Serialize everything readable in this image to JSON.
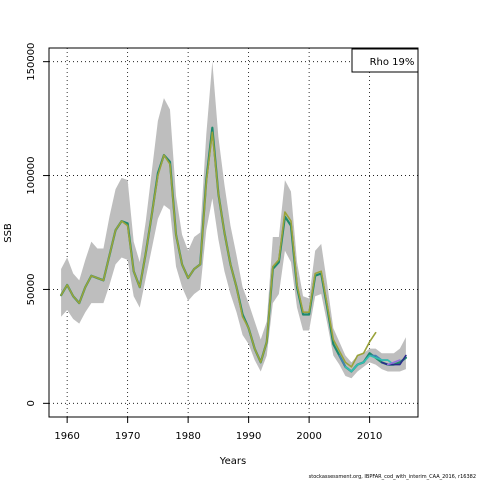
{
  "chart_data": {
    "type": "line",
    "xlabel": "Years",
    "ylabel": "SSB",
    "xlim": [
      1957,
      2018
    ],
    "ylim": [
      -6000,
      156000
    ],
    "x_ticks": [
      1960,
      1970,
      1980,
      1990,
      2000,
      2010
    ],
    "y_ticks": [
      0,
      50000,
      100000,
      150000
    ],
    "grid": "dotted",
    "legend_text": "Rho 19%",
    "legend_position": "top-right",
    "footer": "stockassessment.org, IBPFAR_cod_with_interim_CAA_2016, r16382",
    "confidence_band": {
      "color": "#bebebe",
      "x": [
        1959,
        1960,
        1961,
        1962,
        1963,
        1964,
        1965,
        1966,
        1967,
        1968,
        1969,
        1970,
        1971,
        1972,
        1973,
        1974,
        1975,
        1976,
        1977,
        1978,
        1979,
        1980,
        1981,
        1982,
        1983,
        1984,
        1985,
        1986,
        1987,
        1988,
        1989,
        1990,
        1991,
        1992,
        1993,
        1994,
        1995,
        1996,
        1997,
        1998,
        1999,
        2000,
        2001,
        2002,
        2003,
        2004,
        2005,
        2006,
        2007,
        2008,
        2009,
        2010,
        2011,
        2012,
        2013,
        2014,
        2015,
        2016
      ],
      "lower": [
        38000,
        41000,
        37000,
        35000,
        40000,
        44000,
        44000,
        44000,
        52000,
        61000,
        64000,
        63000,
        47000,
        42000,
        55000,
        68000,
        81000,
        87000,
        85000,
        60000,
        51000,
        45000,
        48000,
        50000,
        76000,
        90000,
        72000,
        58000,
        48000,
        40000,
        30000,
        26000,
        19000,
        14000,
        21000,
        44000,
        48000,
        67000,
        62000,
        42000,
        32000,
        32000,
        47000,
        48000,
        35000,
        21000,
        17000,
        12000,
        11000,
        14000,
        16000,
        18000,
        17000,
        15000,
        14000,
        14000,
        14000,
        15000
      ],
      "upper": [
        59000,
        64000,
        57000,
        54000,
        63000,
        71000,
        68000,
        68000,
        82000,
        94000,
        99000,
        98000,
        71000,
        62000,
        80000,
        102000,
        124000,
        134000,
        129000,
        91000,
        74000,
        67000,
        73000,
        75000,
        118000,
        150000,
        117000,
        96000,
        78000,
        65000,
        51000,
        44000,
        36000,
        28000,
        36000,
        73000,
        73000,
        98000,
        93000,
        62000,
        47000,
        46000,
        67000,
        70000,
        52000,
        33000,
        27000,
        21000,
        18000,
        21000,
        22000,
        24000,
        24000,
        22000,
        22000,
        22000,
        24000,
        29000
      ]
    },
    "series": [
      {
        "color": "#1e8a6e",
        "x": [
          1959,
          1960,
          1961,
          1962,
          1963,
          1964,
          1965,
          1966,
          1967,
          1968,
          1969,
          1970,
          1971,
          1972,
          1973,
          1974,
          1975,
          1976,
          1977,
          1978,
          1979,
          1980,
          1981,
          1982,
          1983,
          1984,
          1985,
          1986,
          1987,
          1988,
          1989,
          1990,
          1991,
          1992,
          1993,
          1994,
          1995,
          1996,
          1997,
          1998,
          1999,
          2000,
          2001,
          2002,
          2003,
          2004,
          2005,
          2006,
          2007,
          2008,
          2009,
          2010,
          2011,
          2012,
          2013,
          2014,
          2015,
          2016
        ],
        "values": [
          47500,
          52000,
          47000,
          44000,
          51000,
          56000,
          55000,
          54000,
          65000,
          76000,
          80000,
          79000,
          58000,
          51000,
          66000,
          83000,
          101000,
          109000,
          106000,
          74000,
          61000,
          55000,
          59000,
          61000,
          98000,
          121000,
          92000,
          75000,
          61000,
          51000,
          39000,
          33000,
          24000,
          18000,
          27000,
          59000,
          62000,
          82000,
          78000,
          51000,
          39000,
          39000,
          56000,
          57000,
          42000,
          26000,
          21000,
          16000,
          14000,
          17000,
          18000,
          22000,
          20000,
          18000,
          17000,
          17000,
          18000,
          20000
        ]
      },
      {
        "color": "#4682b4",
        "x": [
          2005,
          2006,
          2007,
          2008,
          2009,
          2010,
          2011,
          2012,
          2013
        ],
        "values": [
          21000,
          16000,
          14000,
          17000,
          18000,
          21000,
          21000,
          19000,
          19000
        ]
      },
      {
        "color": "#33c0b0",
        "x": [
          2006,
          2007,
          2008,
          2009,
          2010,
          2011,
          2012,
          2013,
          2014
        ],
        "values": [
          16000,
          14000,
          17000,
          18000,
          21000,
          20000,
          19000,
          19000,
          17000
        ]
      },
      {
        "color": "#2b2b8c",
        "x": [
          2012,
          2013,
          2014,
          2015,
          2016
        ],
        "values": [
          18000,
          17000,
          17000,
          17000,
          21000
        ]
      },
      {
        "color": "#9370db",
        "x": [
          2013,
          2014,
          2015
        ],
        "values": [
          17000,
          18000,
          19000
        ]
      },
      {
        "color": "#9aa33a",
        "x": [
          1959,
          1960,
          1961,
          1962,
          1963,
          1964,
          1965,
          1966,
          1967,
          1968,
          1969,
          1970,
          1971,
          1972,
          1973,
          1974,
          1975,
          1976,
          1977,
          1978,
          1979,
          1980,
          1981,
          1982,
          1983,
          1984,
          1985,
          1986,
          1987,
          1988,
          1989,
          1990,
          1991,
          1992,
          1993,
          1994,
          1995,
          1996,
          1997,
          1998,
          1999,
          2000,
          2001,
          2002,
          2003,
          2004,
          2005,
          2006,
          2007,
          2008,
          2009,
          2010,
          2011
        ],
        "values": [
          47500,
          52000,
          47000,
          44000,
          51000,
          56000,
          55000,
          54000,
          65000,
          76000,
          80000,
          78000,
          58000,
          51000,
          66000,
          83000,
          100000,
          109000,
          105000,
          74000,
          61000,
          55000,
          59000,
          61000,
          97000,
          119000,
          92000,
          75000,
          61000,
          51000,
          38000,
          33000,
          24000,
          18000,
          27000,
          60000,
          63000,
          84000,
          80000,
          52000,
          40000,
          40000,
          57000,
          58000,
          43000,
          28000,
          23000,
          18000,
          16000,
          21000,
          22000,
          27000,
          31000
        ]
      }
    ]
  }
}
